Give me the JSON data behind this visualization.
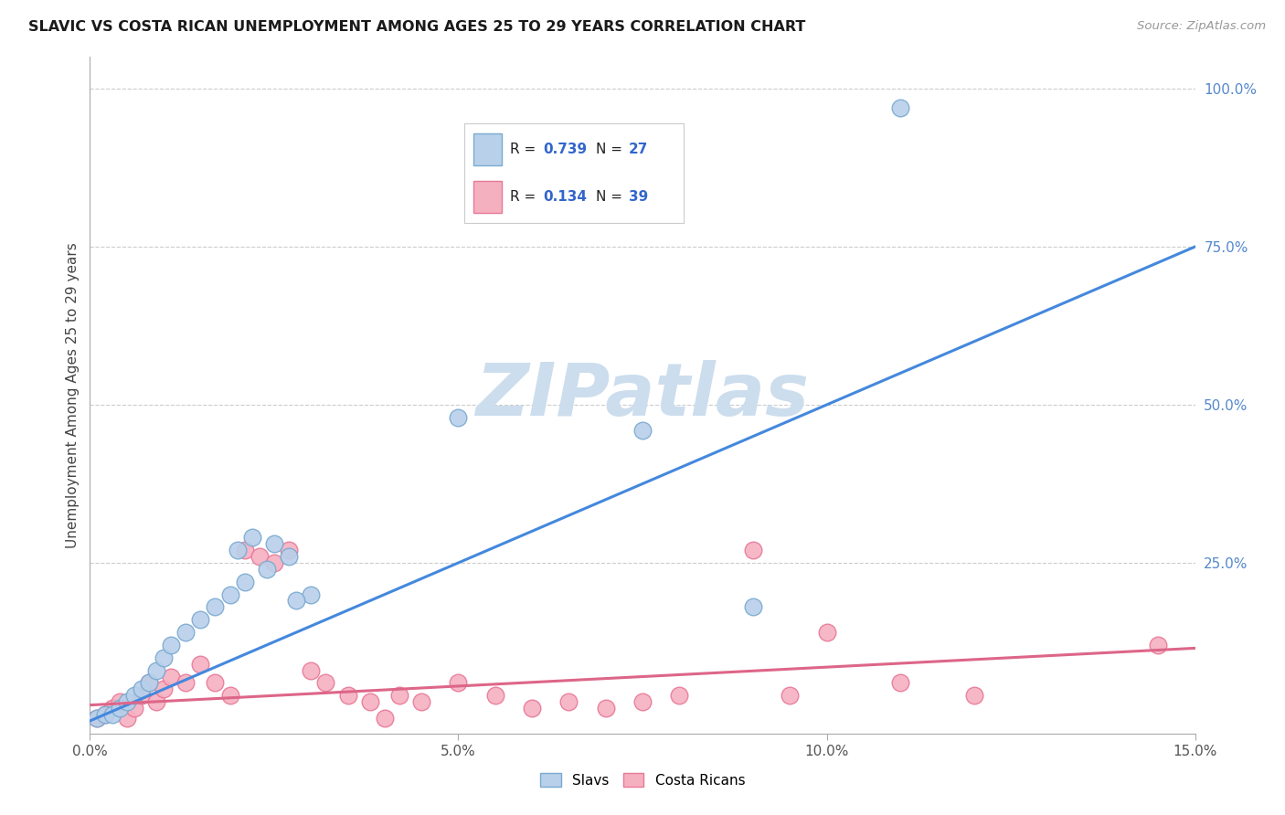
{
  "title": "SLAVIC VS COSTA RICAN UNEMPLOYMENT AMONG AGES 25 TO 29 YEARS CORRELATION CHART",
  "source": "Source: ZipAtlas.com",
  "ylabel_label": "Unemployment Among Ages 25 to 29 years",
  "xlim": [
    0.0,
    0.15
  ],
  "ylim": [
    -0.02,
    1.05
  ],
  "xticks": [
    0.0,
    0.05,
    0.1,
    0.15
  ],
  "xtick_labels": [
    "0.0%",
    "5.0%",
    "10.0%",
    "15.0%"
  ],
  "yticks_right": [
    0.25,
    0.5,
    0.75,
    1.0
  ],
  "ytick_labels_right": [
    "25.0%",
    "50.0%",
    "75.0%",
    "100.0%"
  ],
  "slavs_color": "#b8d0ea",
  "slavs_edge_color": "#7aaad0",
  "costa_color": "#f5b0c0",
  "costa_edge_color": "#e87898",
  "blue_line_color": "#4488dd",
  "pink_line_color": "#dd6688",
  "legend_label1": "Slavs",
  "legend_label2": "Costa Ricans",
  "watermark_text": "ZIPatlas",
  "watermark_color": "#ccdded",
  "grid_color": "#cccccc",
  "slavs_x": [
    0.001,
    0.002,
    0.003,
    0.004,
    0.005,
    0.006,
    0.007,
    0.008,
    0.009,
    0.01,
    0.011,
    0.013,
    0.015,
    0.017,
    0.019,
    0.021,
    0.024,
    0.027,
    0.03,
    0.02,
    0.022,
    0.025,
    0.028,
    0.05,
    0.075,
    0.09,
    0.11
  ],
  "slavs_y": [
    0.005,
    0.01,
    0.01,
    0.02,
    0.03,
    0.04,
    0.05,
    0.06,
    0.08,
    0.1,
    0.12,
    0.14,
    0.16,
    0.18,
    0.2,
    0.22,
    0.24,
    0.26,
    0.2,
    0.27,
    0.29,
    0.28,
    0.19,
    0.48,
    0.46,
    0.18,
    0.97
  ],
  "costa_x": [
    0.001,
    0.002,
    0.003,
    0.004,
    0.005,
    0.006,
    0.007,
    0.008,
    0.009,
    0.01,
    0.011,
    0.013,
    0.015,
    0.017,
    0.019,
    0.021,
    0.023,
    0.025,
    0.027,
    0.03,
    0.032,
    0.035,
    0.038,
    0.04,
    0.042,
    0.045,
    0.05,
    0.055,
    0.06,
    0.065,
    0.07,
    0.075,
    0.08,
    0.09,
    0.095,
    0.1,
    0.11,
    0.12,
    0.145
  ],
  "costa_y": [
    0.005,
    0.01,
    0.02,
    0.03,
    0.005,
    0.02,
    0.04,
    0.06,
    0.03,
    0.05,
    0.07,
    0.06,
    0.09,
    0.06,
    0.04,
    0.27,
    0.26,
    0.25,
    0.27,
    0.08,
    0.06,
    0.04,
    0.03,
    0.005,
    0.04,
    0.03,
    0.06,
    0.04,
    0.02,
    0.03,
    0.02,
    0.03,
    0.04,
    0.27,
    0.04,
    0.14,
    0.06,
    0.04,
    0.12
  ],
  "blue_line_x": [
    0.0,
    0.15
  ],
  "blue_line_y": [
    0.0,
    0.75
  ],
  "pink_line_x": [
    0.0,
    0.15
  ],
  "pink_line_y": [
    0.025,
    0.115
  ]
}
